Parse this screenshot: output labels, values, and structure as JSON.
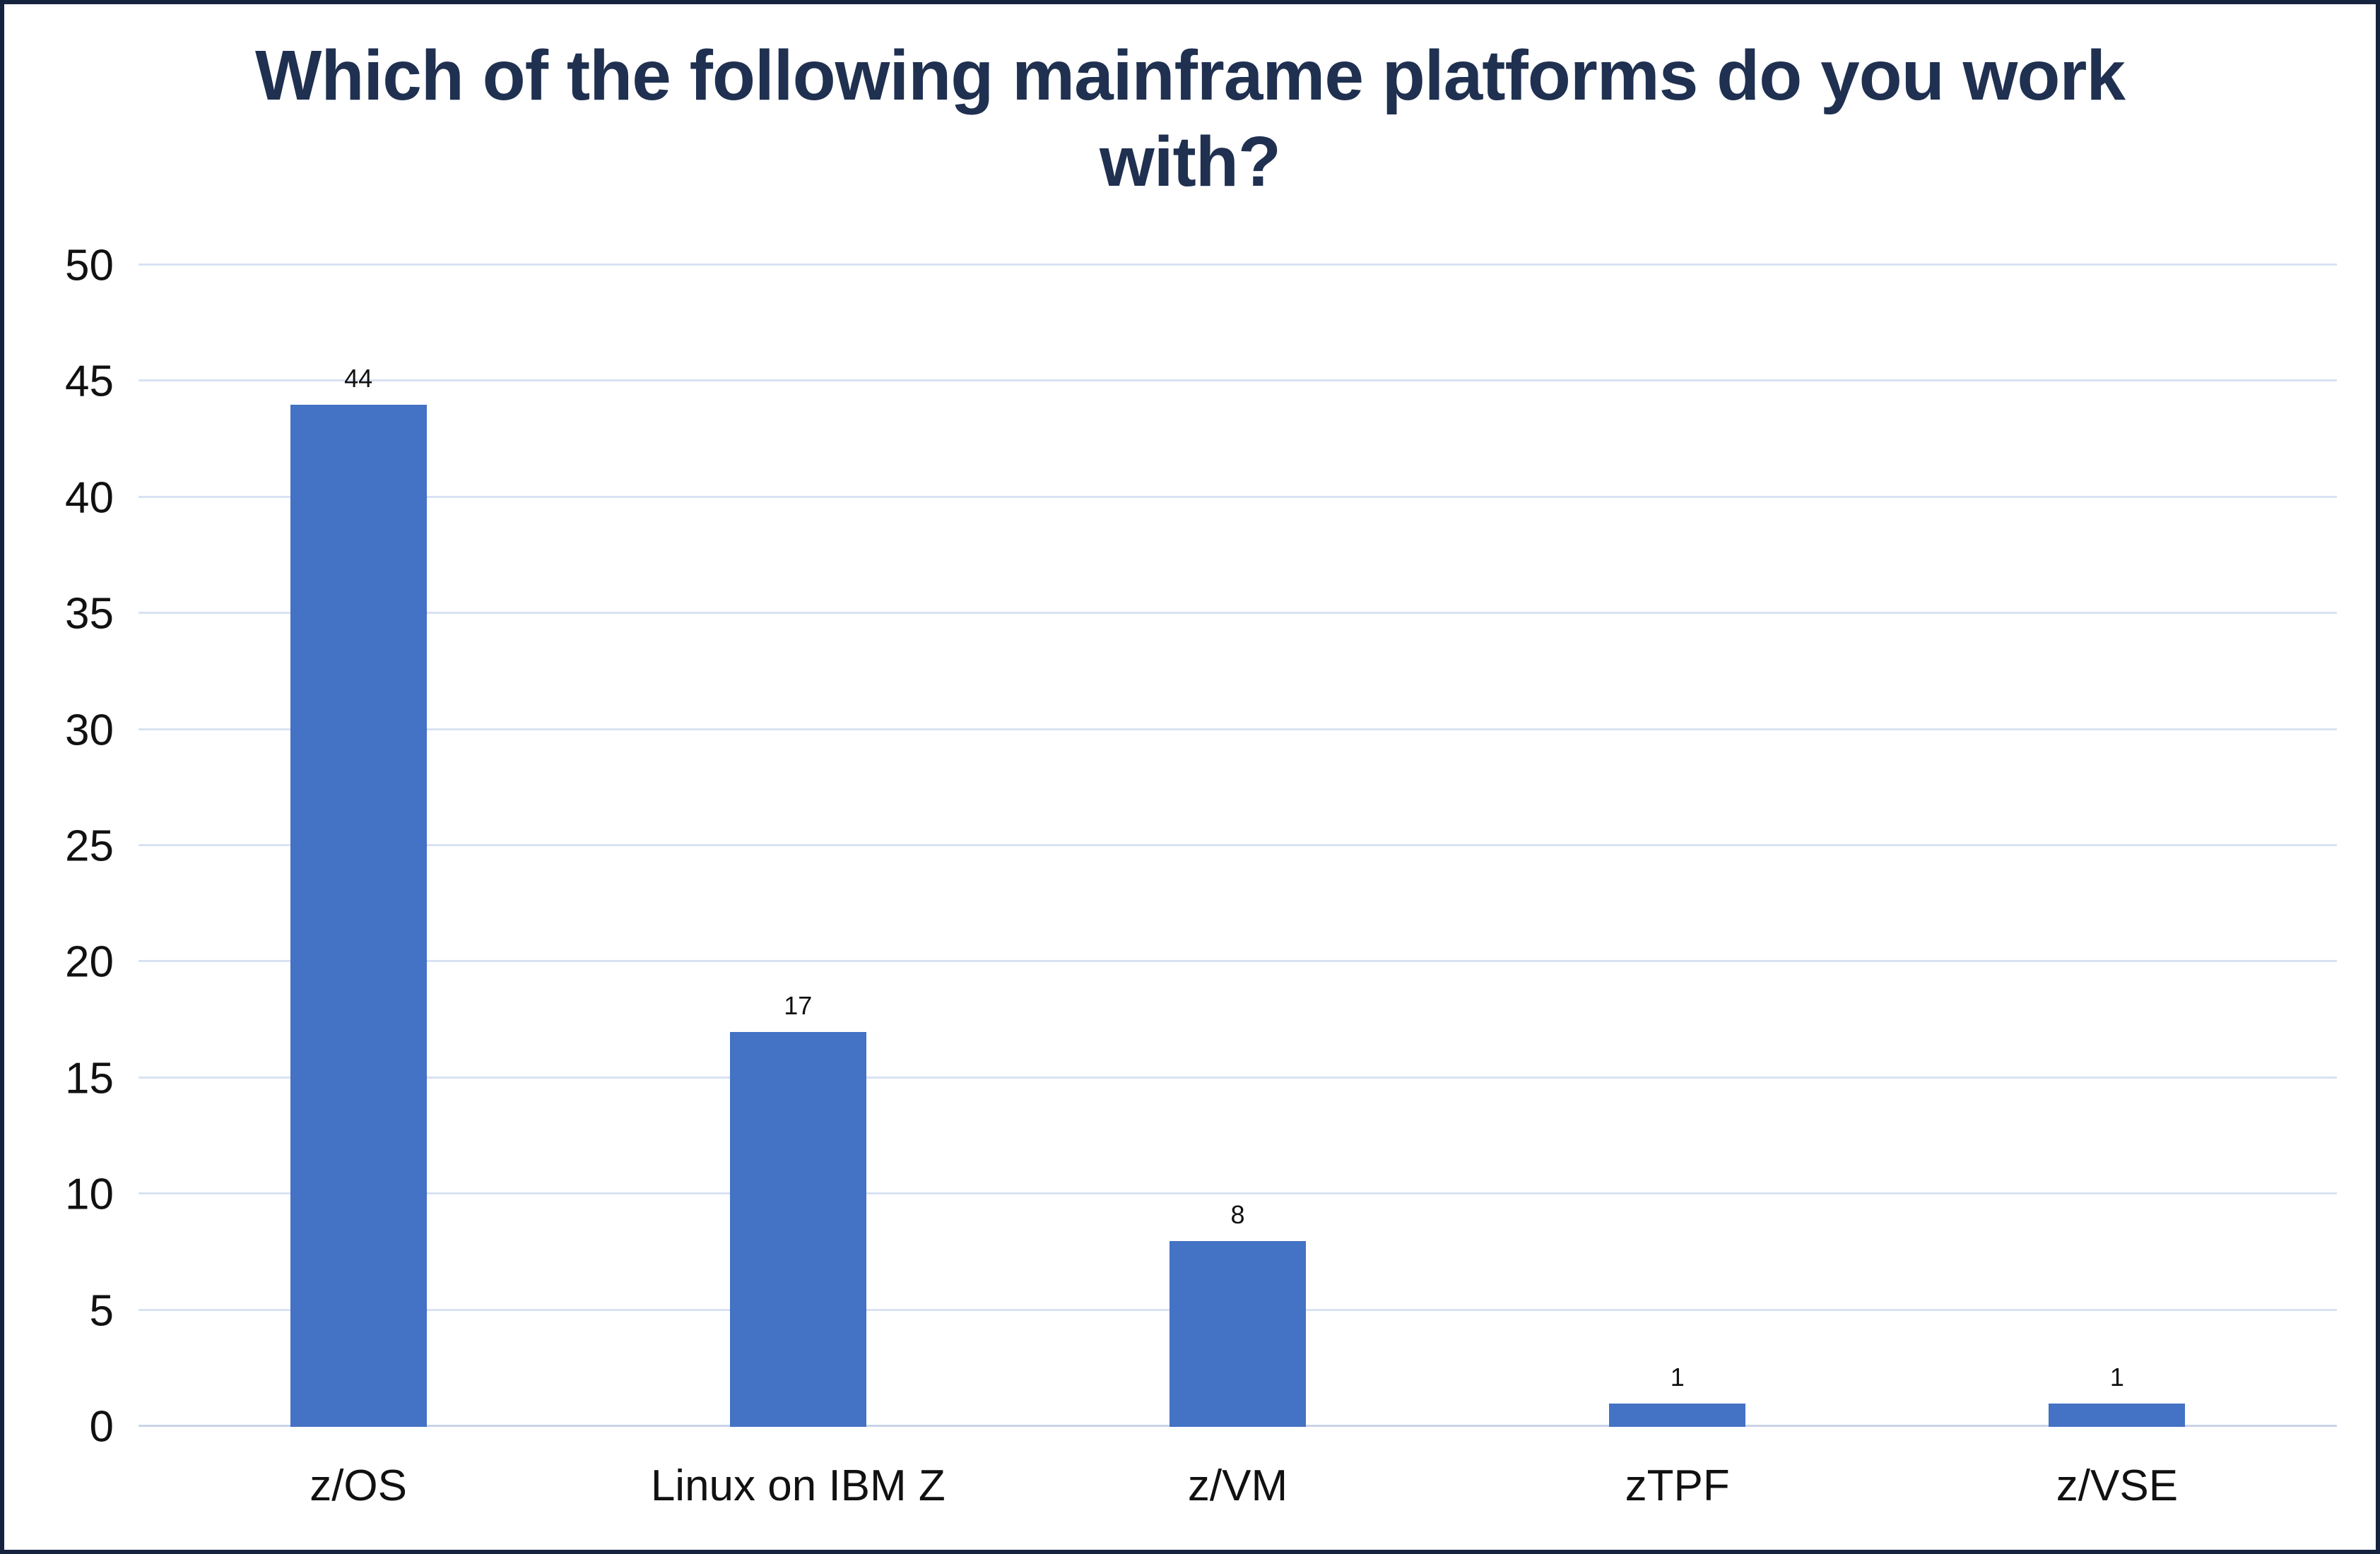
{
  "chart_data": {
    "type": "bar",
    "title": "Which of the following mainframe platforms do you work with?",
    "categories": [
      "z/OS",
      "Linux on IBM Z",
      "z/VM",
      "zTPF",
      "z/VSE"
    ],
    "values": [
      44,
      17,
      8,
      1,
      1
    ],
    "xlabel": "",
    "ylabel": "",
    "ylim": [
      0,
      50
    ],
    "ytick_step": 5,
    "ytick_labels": [
      "0",
      "5",
      "10",
      "15",
      "20",
      "25",
      "30",
      "35",
      "40",
      "45",
      "50"
    ],
    "data_labels": [
      "44",
      "17",
      "8",
      "1",
      "1"
    ],
    "grid": true,
    "legend": false
  },
  "colors": {
    "bar": "#4472C4",
    "title": "#1F3050",
    "grid": "#D9E2F3",
    "axis_text": "#111111",
    "frame_border": "#16233F",
    "background": "#FFFFFF"
  }
}
